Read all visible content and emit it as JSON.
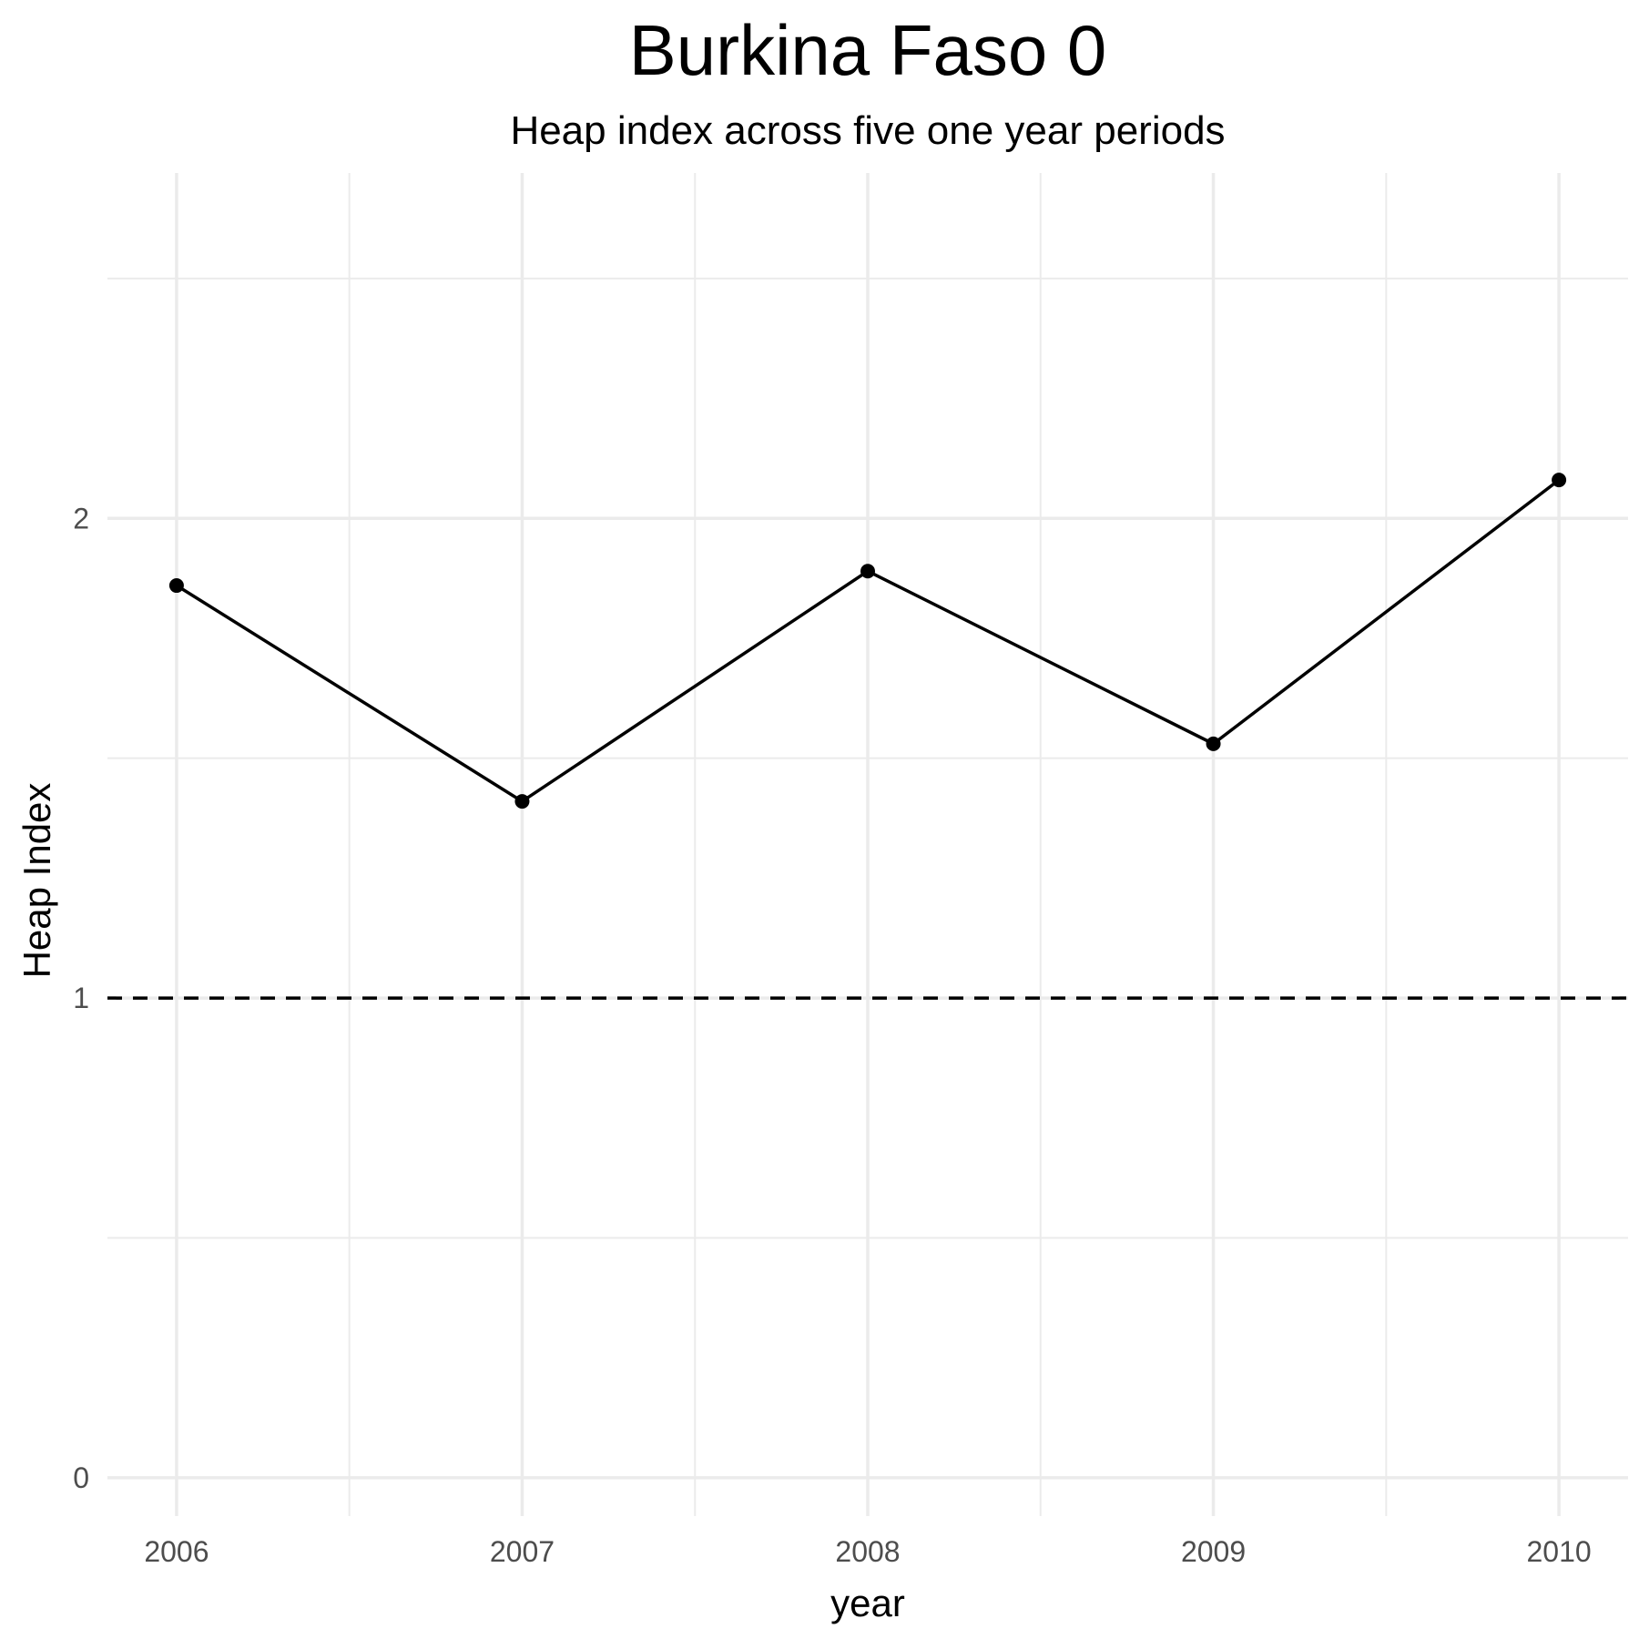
{
  "chart_data": {
    "type": "line",
    "title": "Burkina Faso 0",
    "subtitle": "Heap index across five one year periods",
    "xlabel": "year",
    "ylabel": "Heap Index",
    "x": [
      2006,
      2007,
      2008,
      2009,
      2010
    ],
    "series": [
      {
        "values": [
          1.86,
          1.41,
          1.89,
          1.53,
          2.08
        ]
      }
    ],
    "x_ticks": [
      "2006",
      "2007",
      "2008",
      "2009",
      "2010"
    ],
    "y_ticks": [
      "0",
      "1",
      "2"
    ],
    "xlim": [
      2005.8,
      2010.2
    ],
    "ylim": [
      -0.08,
      2.72
    ],
    "reference_line": {
      "y": 1,
      "style": "dashed"
    },
    "grid": true,
    "colors": {
      "line": "#000000",
      "grid": "#ebebeb",
      "reference": "#000000"
    }
  }
}
